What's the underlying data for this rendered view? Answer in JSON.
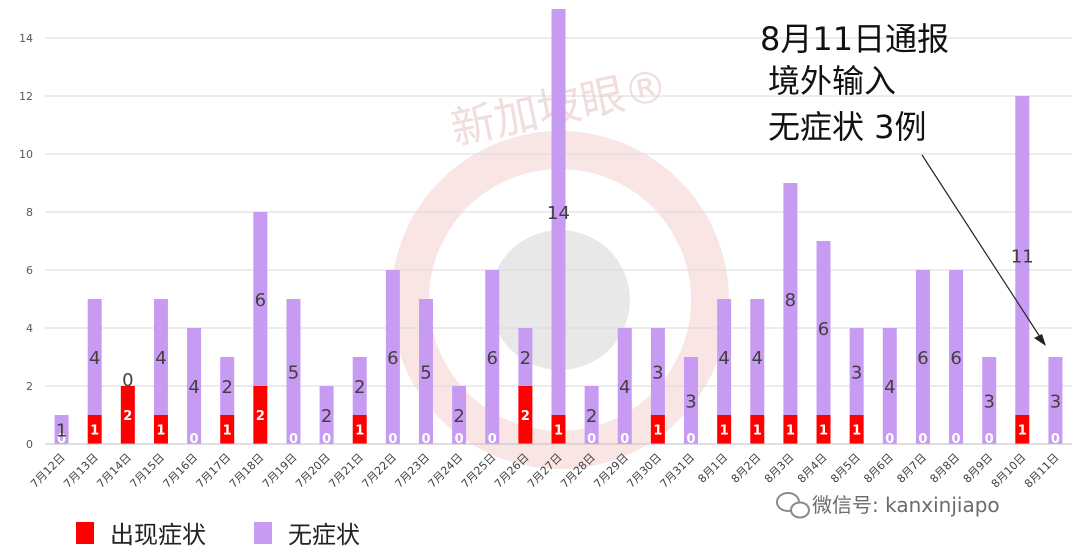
{
  "colors": {
    "symptomatic": "#ff0000",
    "asymptomatic": "#c89bf3",
    "grid": "#d9d9d9",
    "annotation_highlight": "#cc22dd",
    "watermark": "#f2c3c3"
  },
  "annotation": {
    "line1": "8月11日通报",
    "line2": "境外输入",
    "line3": "无症状 3例"
  },
  "watermark_text": "新加坡眼®",
  "wechat": {
    "icon": "wechat-icon",
    "text": "微信号: kanxinjiapo"
  },
  "chart_data": {
    "type": "bar",
    "stacked": true,
    "ylim": [
      0,
      14
    ],
    "yticks": [
      "0",
      "2",
      "4",
      "6",
      "8",
      "10",
      "12",
      "14"
    ],
    "grid": true,
    "legend_position": "bottom-left",
    "categories": [
      "7月12日",
      "7月13日",
      "7月14日",
      "7月15日",
      "7月16日",
      "7月17日",
      "7月18日",
      "7月19日",
      "7月20日",
      "7月21日",
      "7月22日",
      "7月23日",
      "7月24日",
      "7月25日",
      "7月26日",
      "7月27日",
      "7月28日",
      "7月29日",
      "7月30日",
      "7月31日",
      "8月1日",
      "8月2日",
      "8月3日",
      "8月4日",
      "8月5日",
      "8月6日",
      "8月7日",
      "8月8日",
      "8月9日",
      "8月10日",
      "8月11日"
    ],
    "series": [
      {
        "name": "出现症状",
        "values": [
          0,
          1,
          2,
          1,
          0,
          1,
          2,
          0,
          0,
          1,
          0,
          0,
          0,
          0,
          2,
          1,
          0,
          0,
          1,
          0,
          1,
          1,
          1,
          1,
          1,
          0,
          0,
          0,
          0,
          1,
          0
        ],
        "labels": [
          "0",
          "1",
          "2",
          "1",
          "0",
          "1",
          "2",
          "0",
          "0",
          "1",
          "0",
          "0",
          "0",
          "0",
          "2",
          "1",
          "0",
          "0",
          "1",
          "0",
          "1",
          "1",
          "1",
          "1",
          "1",
          "0",
          "0",
          "0",
          "0",
          "1",
          "0"
        ]
      },
      {
        "name": "无症状",
        "values": [
          1,
          4,
          0,
          4,
          4,
          2,
          6,
          5,
          2,
          2,
          6,
          5,
          2,
          6,
          2,
          14,
          2,
          4,
          3,
          3,
          4,
          4,
          8,
          6,
          3,
          4,
          6,
          6,
          3,
          11,
          3
        ],
        "labels": [
          "1",
          "4",
          "0",
          "4",
          "4",
          "2",
          "6",
          "5",
          "2",
          "2",
          "6",
          "5",
          "2",
          "6",
          "2",
          "14",
          "2",
          "4",
          "3",
          "3",
          "4",
          "4",
          "8",
          "6",
          "3",
          "4",
          "6",
          "6",
          "3",
          "11",
          "3"
        ]
      }
    ]
  }
}
